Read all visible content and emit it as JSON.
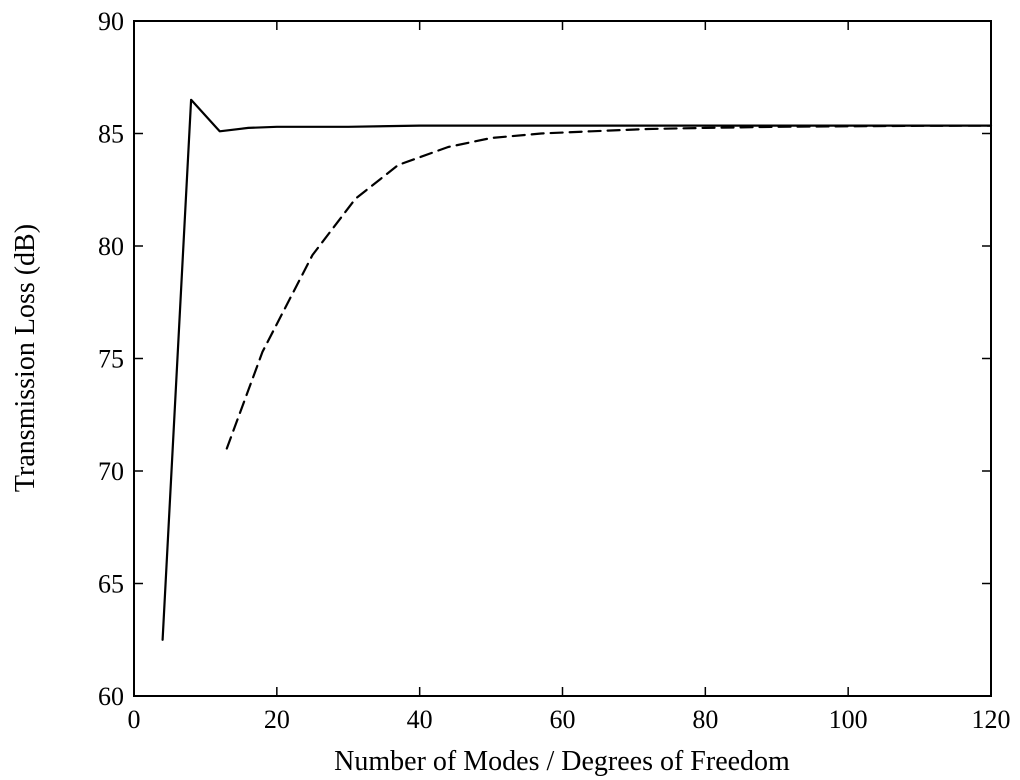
{
  "chart_data": {
    "type": "line",
    "title": "",
    "xlabel": "Number of Modes / Degrees of Freedom",
    "ylabel": "Transmission Loss (dB)",
    "xlim": [
      0,
      120
    ],
    "ylim": [
      60,
      90
    ],
    "xticks": [
      0,
      20,
      40,
      60,
      80,
      100,
      120
    ],
    "yticks": [
      60,
      65,
      70,
      75,
      80,
      85,
      90
    ],
    "xtick_labels": [
      "0",
      "20",
      "40",
      "60",
      "80",
      "100",
      "120"
    ],
    "ytick_labels": [
      "60",
      "65",
      "70",
      "75",
      "80",
      "85",
      "90"
    ],
    "grid": false,
    "legend": "none",
    "series": [
      {
        "style": "solid",
        "color": "#000000",
        "x": [
          4,
          8,
          12,
          16,
          20,
          30,
          40,
          60,
          80,
          100,
          120
        ],
        "y": [
          62.5,
          86.5,
          85.1,
          85.25,
          85.3,
          85.3,
          85.35,
          85.35,
          85.35,
          85.35,
          85.35
        ]
      },
      {
        "style": "dashed",
        "color": "#000000",
        "x": [
          13,
          18,
          25,
          31,
          37,
          44,
          50,
          57,
          64,
          72,
          80,
          90,
          100,
          110,
          120
        ],
        "y": [
          71.0,
          75.3,
          79.6,
          82.1,
          83.6,
          84.4,
          84.8,
          85.0,
          85.1,
          85.2,
          85.25,
          85.3,
          85.32,
          85.34,
          85.35
        ]
      }
    ]
  }
}
